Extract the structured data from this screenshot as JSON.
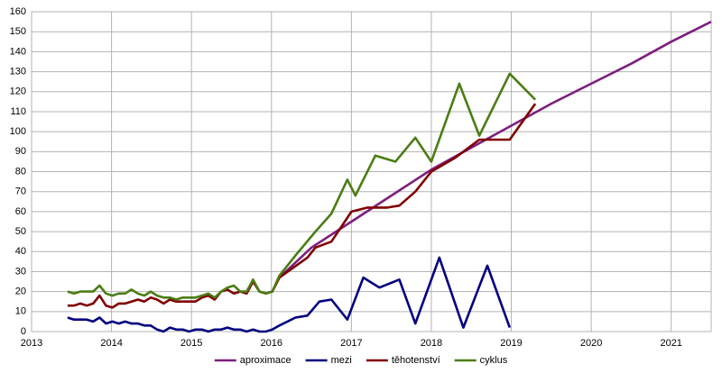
{
  "chart_data": {
    "type": "line",
    "xlim": [
      2013,
      2021.5
    ],
    "xticks": [
      2013,
      2014,
      2015,
      2016,
      2017,
      2018,
      2019,
      2020,
      2021
    ],
    "ylim": [
      0,
      160
    ],
    "yticks": [
      0,
      10,
      20,
      30,
      40,
      50,
      60,
      70,
      80,
      90,
      100,
      110,
      120,
      130,
      140,
      150,
      160
    ],
    "grid": true,
    "legend": "bottom",
    "series": [
      {
        "name": "aproximace",
        "color": "#7e1e7e",
        "x": [
          2016.1,
          2016.5,
          2017,
          2017.5,
          2018,
          2018.5,
          2019,
          2019.5,
          2020,
          2020.5,
          2021,
          2021.5
        ],
        "values": [
          27,
          42,
          55,
          68,
          81,
          92,
          103,
          114,
          124,
          134,
          145,
          155
        ]
      },
      {
        "name": "mezi",
        "color": "#000080",
        "x": [
          2013.45,
          2013.53,
          2013.61,
          2013.69,
          2013.77,
          2013.85,
          2013.93,
          2014.01,
          2014.09,
          2014.17,
          2014.25,
          2014.33,
          2014.41,
          2014.49,
          2014.57,
          2014.65,
          2014.73,
          2014.81,
          2014.89,
          2014.97,
          2015.05,
          2015.13,
          2015.21,
          2015.29,
          2015.37,
          2015.45,
          2015.53,
          2015.61,
          2015.69,
          2015.77,
          2015.85,
          2015.93,
          2016.01,
          2016.1,
          2016.3,
          2016.45,
          2016.6,
          2016.75,
          2016.95,
          2017.15,
          2017.35,
          2017.6,
          2017.8,
          2018.1,
          2018.4,
          2018.7,
          2018.98
        ],
        "values": [
          7,
          6,
          6,
          6,
          5,
          7,
          4,
          5,
          4,
          5,
          4,
          4,
          3,
          3,
          1,
          0,
          2,
          1,
          1,
          0,
          1,
          1,
          0,
          1,
          1,
          2,
          1,
          1,
          0,
          1,
          0,
          0,
          1,
          3,
          7,
          8,
          15,
          16,
          6,
          27,
          22,
          26,
          4,
          37,
          2,
          33,
          2
        ]
      },
      {
        "name": "těhotenství",
        "color": "#800000",
        "x": [
          2013.45,
          2013.53,
          2013.61,
          2013.69,
          2013.77,
          2013.85,
          2013.93,
          2014.01,
          2014.09,
          2014.17,
          2014.25,
          2014.33,
          2014.41,
          2014.49,
          2014.57,
          2014.65,
          2014.73,
          2014.81,
          2014.89,
          2014.97,
          2015.05,
          2015.13,
          2015.21,
          2015.29,
          2015.37,
          2015.45,
          2015.53,
          2015.61,
          2015.69,
          2015.77,
          2015.85,
          2015.93,
          2016.01,
          2016.1,
          2016.45,
          2016.55,
          2016.75,
          2017,
          2017.2,
          2017.45,
          2017.6,
          2017.8,
          2018,
          2018.3,
          2018.6,
          2018.98,
          2019.3
        ],
        "values": [
          13,
          13,
          14,
          13,
          14,
          18,
          13,
          12,
          14,
          14,
          15,
          16,
          15,
          17,
          16,
          14,
          16,
          15,
          15,
          15,
          15,
          17,
          18,
          16,
          20,
          21,
          19,
          20,
          19,
          25,
          20,
          19,
          20,
          27,
          37,
          42,
          45,
          60,
          62,
          62,
          63,
          70,
          80,
          87,
          96,
          96,
          114
        ]
      },
      {
        "name": "cyklus",
        "color": "#4b7d14",
        "x": [
          2013.45,
          2013.53,
          2013.61,
          2013.69,
          2013.77,
          2013.85,
          2013.93,
          2014.01,
          2014.09,
          2014.17,
          2014.25,
          2014.33,
          2014.41,
          2014.49,
          2014.57,
          2014.65,
          2014.73,
          2014.81,
          2014.89,
          2014.97,
          2015.05,
          2015.13,
          2015.21,
          2015.29,
          2015.37,
          2015.45,
          2015.53,
          2015.61,
          2015.69,
          2015.77,
          2015.85,
          2015.93,
          2016.01,
          2016.1,
          2016.3,
          2016.55,
          2016.75,
          2016.95,
          2017.05,
          2017.3,
          2017.55,
          2017.8,
          2018,
          2018.35,
          2018.6,
          2018.98,
          2019.3
        ],
        "values": [
          20,
          19,
          20,
          20,
          20,
          23,
          19,
          18,
          19,
          19,
          21,
          19,
          18,
          20,
          18,
          17,
          17,
          16,
          17,
          17,
          17,
          18,
          19,
          17,
          20,
          22,
          23,
          20,
          20,
          26,
          20,
          19,
          20,
          28,
          38,
          50,
          59,
          76,
          68,
          88,
          85,
          97,
          85,
          124,
          98,
          129,
          116
        ]
      }
    ]
  }
}
